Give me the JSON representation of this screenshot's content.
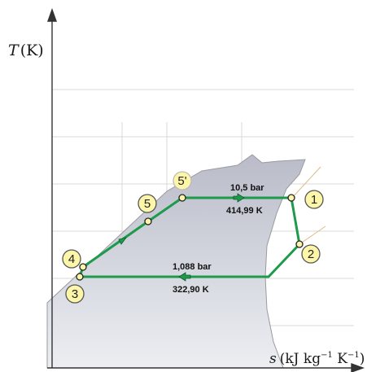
{
  "axes": {
    "y_label_T": "T",
    "y_label_unit": "(K)",
    "x_label_s": "s",
    "x_label_unit_open": "(kJ kg",
    "x_label_exp1": "−1",
    "x_label_mid": " K",
    "x_label_exp2": "−1",
    "x_label_close": ")"
  },
  "states": {
    "s1": "1",
    "s2": "2",
    "s3": "3",
    "s4": "4",
    "s5": "5",
    "s5p": "5'"
  },
  "annotations": {
    "high_pressure": "10,5 bar",
    "high_temperature": "414,99 K",
    "low_pressure": "1,088 bar",
    "low_temperature": "322,90 K"
  },
  "colors": {
    "cycle_line": "#1d9a4c",
    "dome_fill": "#c9ccd6",
    "state_circle_fill": "#fdf6a8",
    "axis": "#333333"
  }
}
